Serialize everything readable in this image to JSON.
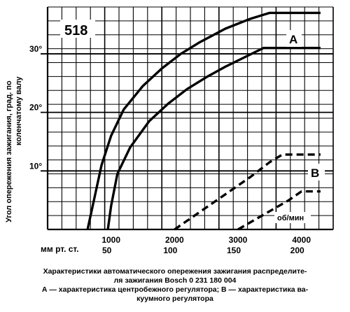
{
  "chart_data": {
    "type": "line",
    "chart_id": "518",
    "ylabel": "Угол опережения зажигания, град. по коленчатому валу",
    "x_unit_label": "об/мин",
    "x_ticks": [
      "1000",
      "2000",
      "3000",
      "4000"
    ],
    "x2_label": "мм рт. ст.",
    "x2_ticks": [
      "50",
      "100",
      "150",
      "200"
    ],
    "y_ticks": [
      "10°",
      "20°",
      "30°"
    ],
    "xlim": [
      0,
      4500
    ],
    "ylim": [
      0,
      38
    ],
    "grid": true,
    "series": [
      {
        "name": "A",
        "style": "solid",
        "x": [
          630,
          750,
          850,
          1000,
          1200,
          1500,
          1800,
          2100,
          2400,
          2800,
          3200,
          3500,
          4300
        ],
        "y": [
          0,
          6,
          11,
          16,
          20.5,
          24.5,
          27.5,
          30,
          32,
          34.3,
          36,
          37,
          37
        ]
      },
      {
        "name": "A",
        "style": "solid",
        "x": [
          950,
          1000,
          1100,
          1300,
          1600,
          1900,
          2200,
          2500,
          2800,
          3100,
          3400,
          4300
        ],
        "y": [
          0,
          4,
          9.5,
          14,
          18.5,
          21.5,
          24,
          26,
          27.8,
          29.4,
          31,
          31
        ]
      },
      {
        "name": "B",
        "style": "dashed",
        "x": [
          2000,
          2400,
          2800,
          3200,
          3500,
          3700,
          4300
        ],
        "y": [
          0,
          3,
          6,
          9,
          11.5,
          12.8,
          12.8
        ]
      },
      {
        "name": "B",
        "style": "dashed",
        "x": [
          3000,
          3400,
          3800,
          4000,
          4300
        ],
        "y": [
          0,
          2.5,
          5,
          6.5,
          6.5
        ]
      }
    ]
  },
  "labels": {
    "curve_a": "A",
    "curve_b": "B"
  },
  "caption": {
    "line1": "Характеристики автоматического опережения зажигания распределите-",
    "line2": "ля зажигания Bosch 0 231 180 004",
    "line3": "А — характеристика центробежного регулятора; В — характеристика ва-",
    "line4": "куумного регулятора"
  }
}
